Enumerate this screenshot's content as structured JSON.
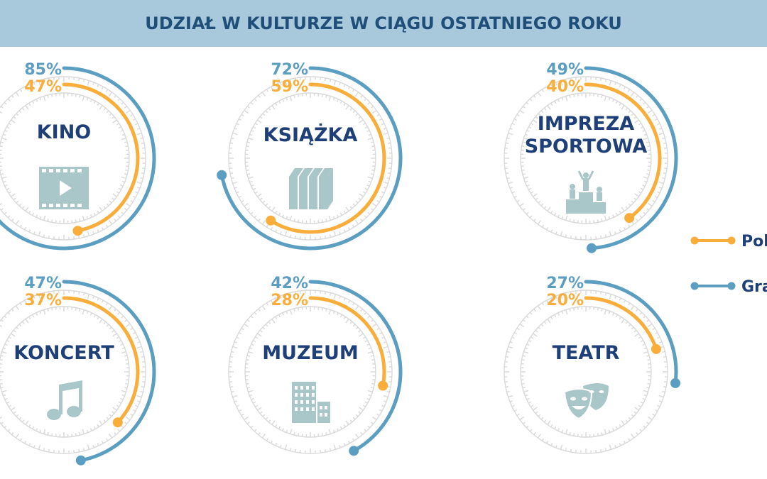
{
  "title": "UDZIAŁ W KULTURZE W CIĄGU OSTATNIEGO ROKU",
  "colors": {
    "title_bg": "#a8c8dc",
    "title_text": "#1f4e79",
    "polska": "#f9ae3c",
    "grant": "#5b9ec2",
    "label": "#1f3f78",
    "icon": "#a9c7c9",
    "ticks": "#d9d9d9"
  },
  "legend": [
    "Pol",
    "Gra"
  ],
  "chart_data": {
    "type": "radial-bar",
    "title": "UDZIAŁ W KULTURZE W CIĄGU OSTATNIEGO ROKU",
    "unit": "%",
    "legend_position": "right",
    "categories": [
      "KINO",
      "KSIĄŻKA",
      "IMPREZA SPORTOWA",
      "KONCERT",
      "MUZEUM",
      "TEATR"
    ],
    "series": [
      {
        "name": "Gra",
        "color": "#5b9ec2",
        "values": [
          85,
          72,
          49,
          47,
          42,
          27
        ]
      },
      {
        "name": "Pol",
        "color": "#f9ae3c",
        "values": [
          47,
          59,
          40,
          37,
          28,
          20
        ]
      }
    ],
    "icons": [
      "film-icon",
      "books-icon",
      "podium-icon",
      "music-note-icon",
      "building-icon",
      "theater-masks-icon"
    ]
  }
}
